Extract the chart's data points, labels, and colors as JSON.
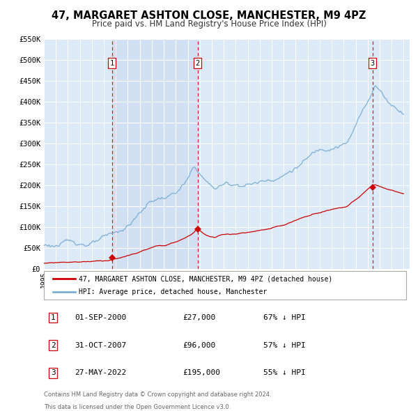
{
  "title": "47, MARGARET ASHTON CLOSE, MANCHESTER, M9 4PZ",
  "subtitle": "Price paid vs. HM Land Registry's House Price Index (HPI)",
  "ylim": [
    0,
    550000
  ],
  "xlim_start": 1995.0,
  "xlim_end": 2025.5,
  "background_color": "#ffffff",
  "plot_bg_color": "#dce9f7",
  "grid_color": "#ffffff",
  "hpi_color": "#7bafd4",
  "price_color": "#cc0000",
  "sale_marker_color": "#cc0000",
  "dashed_line_color": "#cc0000",
  "shade_color": "#dce9f7",
  "transactions": [
    {
      "num": 1,
      "date_str": "01-SEP-2000",
      "year": 2000.67,
      "price": 27000,
      "hpi_pct": "67% ↓ HPI"
    },
    {
      "num": 2,
      "date_str": "31-OCT-2007",
      "year": 2007.83,
      "price": 96000,
      "hpi_pct": "57% ↓ HPI"
    },
    {
      "num": 3,
      "date_str": "27-MAY-2022",
      "year": 2022.41,
      "price": 195000,
      "hpi_pct": "55% ↓ HPI"
    }
  ],
  "yticks": [
    0,
    50000,
    100000,
    150000,
    200000,
    250000,
    300000,
    350000,
    400000,
    450000,
    500000,
    550000
  ],
  "ytick_labels": [
    "£0",
    "£50K",
    "£100K",
    "£150K",
    "£200K",
    "£250K",
    "£300K",
    "£350K",
    "£400K",
    "£450K",
    "£500K",
    "£550K"
  ],
  "xticks": [
    1995,
    1996,
    1997,
    1998,
    1999,
    2000,
    2001,
    2002,
    2003,
    2004,
    2005,
    2006,
    2007,
    2008,
    2009,
    2010,
    2011,
    2012,
    2013,
    2014,
    2015,
    2016,
    2017,
    2018,
    2019,
    2020,
    2021,
    2022,
    2023,
    2024,
    2025
  ],
  "legend_label_red": "47, MARGARET ASHTON CLOSE, MANCHESTER, M9 4PZ (detached house)",
  "legend_label_blue": "HPI: Average price, detached house, Manchester",
  "table_rows": [
    {
      "num": "1",
      "date": "01-SEP-2000",
      "price": "£27,000",
      "hpi": "67% ↓ HPI"
    },
    {
      "num": "2",
      "date": "31-OCT-2007",
      "price": "£96,000",
      "hpi": "57% ↓ HPI"
    },
    {
      "num": "3",
      "date": "27-MAY-2022",
      "price": "£195,000",
      "hpi": "55% ↓ HPI"
    }
  ],
  "footer1": "Contains HM Land Registry data © Crown copyright and database right 2024.",
  "footer2": "This data is licensed under the Open Government Licence v3.0."
}
